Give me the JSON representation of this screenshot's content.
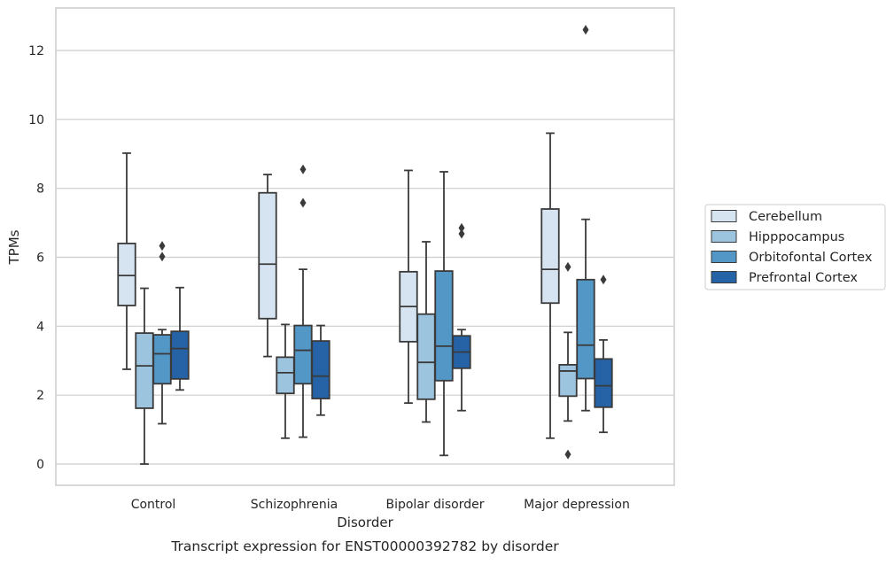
{
  "chart_data": {
    "type": "box",
    "title": "",
    "xlabel": "Disorder",
    "ylabel": "TPMs",
    "caption": "Transcript expression for ENST00000392782 by disorder",
    "ylim": [
      -0.6,
      13.2
    ],
    "yticks": [
      0,
      2,
      4,
      6,
      8,
      10,
      12
    ],
    "grid": "horizontal",
    "legend_position": "right",
    "categories": [
      "Control",
      "Schizophrenia",
      "Bipolar disorder",
      "Major depression"
    ],
    "series": [
      {
        "name": "Cerebellum",
        "color": "#d6e4f2",
        "boxes": [
          {
            "whisker_low": 2.75,
            "q1": 4.6,
            "median": 5.47,
            "q3": 6.4,
            "whisker_high": 9.02,
            "outliers": []
          },
          {
            "whisker_low": 3.12,
            "q1": 4.22,
            "median": 5.8,
            "q3": 7.87,
            "whisker_high": 8.4,
            "outliers": []
          },
          {
            "whisker_low": 1.77,
            "q1": 3.55,
            "median": 4.57,
            "q3": 5.58,
            "whisker_high": 8.52,
            "outliers": []
          },
          {
            "whisker_low": 0.75,
            "q1": 4.67,
            "median": 5.65,
            "q3": 7.4,
            "whisker_high": 9.6,
            "outliers": []
          }
        ]
      },
      {
        "name": "Hipppocampus",
        "color": "#9dc4de",
        "boxes": [
          {
            "whisker_low": 0.0,
            "q1": 1.62,
            "median": 2.85,
            "q3": 3.8,
            "whisker_high": 5.1,
            "outliers": []
          },
          {
            "whisker_low": 0.75,
            "q1": 2.05,
            "median": 2.65,
            "q3": 3.1,
            "whisker_high": 4.05,
            "outliers": []
          },
          {
            "whisker_low": 1.22,
            "q1": 1.88,
            "median": 2.95,
            "q3": 4.35,
            "whisker_high": 6.45,
            "outliers": []
          },
          {
            "whisker_low": 1.25,
            "q1": 1.97,
            "median": 2.7,
            "q3": 2.88,
            "whisker_high": 3.82,
            "outliers": [
              0.28,
              5.72
            ]
          }
        ]
      },
      {
        "name": "Orbitofontal Cortex",
        "color": "#5297c6",
        "boxes": [
          {
            "whisker_low": 1.17,
            "q1": 2.33,
            "median": 3.2,
            "q3": 3.75,
            "whisker_high": 3.9,
            "outliers": [
              6.02,
              6.33
            ]
          },
          {
            "whisker_low": 0.78,
            "q1": 2.33,
            "median": 3.3,
            "q3": 4.02,
            "whisker_high": 5.65,
            "outliers": [
              7.58,
              8.55
            ]
          },
          {
            "whisker_low": 0.25,
            "q1": 2.42,
            "median": 3.42,
            "q3": 5.6,
            "whisker_high": 8.48,
            "outliers": []
          },
          {
            "whisker_low": 1.55,
            "q1": 2.48,
            "median": 3.45,
            "q3": 5.35,
            "whisker_high": 7.1,
            "outliers": [
              12.6
            ]
          }
        ]
      },
      {
        "name": "Prefrontal Cortex",
        "color": "#2563a6",
        "boxes": [
          {
            "whisker_low": 2.15,
            "q1": 2.47,
            "median": 3.35,
            "q3": 3.85,
            "whisker_high": 5.12,
            "outliers": []
          },
          {
            "whisker_low": 1.42,
            "q1": 1.9,
            "median": 2.55,
            "q3": 3.57,
            "whisker_high": 4.02,
            "outliers": []
          },
          {
            "whisker_low": 1.55,
            "q1": 2.78,
            "median": 3.25,
            "q3": 3.72,
            "whisker_high": 3.9,
            "outliers": [
              6.68,
              6.85
            ]
          },
          {
            "whisker_low": 0.92,
            "q1": 1.65,
            "median": 2.27,
            "q3": 3.05,
            "whisker_high": 3.6,
            "outliers": [
              5.35
            ]
          }
        ]
      }
    ]
  }
}
